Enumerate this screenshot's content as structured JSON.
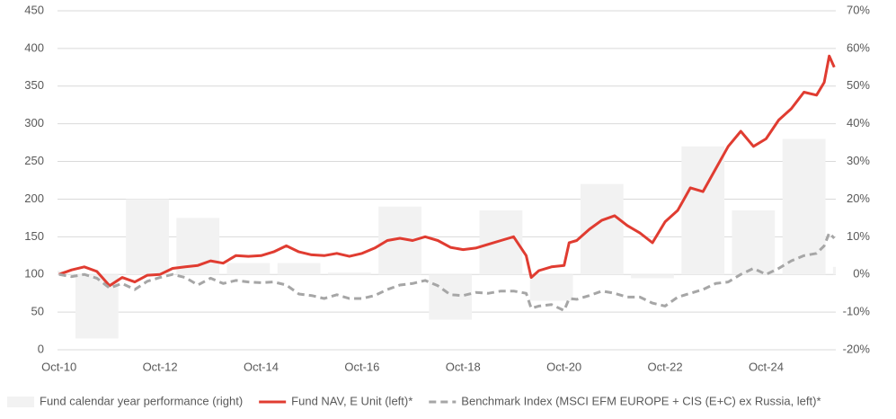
{
  "chart_data": {
    "type": "combo",
    "x": [
      2010.75,
      2011.0,
      2011.25,
      2011.5,
      2011.75,
      2012.0,
      2012.25,
      2012.5,
      2012.75,
      2013.0,
      2013.25,
      2013.5,
      2013.75,
      2014.0,
      2014.25,
      2014.5,
      2014.75,
      2015.0,
      2015.25,
      2015.5,
      2015.75,
      2016.0,
      2016.25,
      2016.5,
      2016.75,
      2017.0,
      2017.25,
      2017.5,
      2017.75,
      2018.0,
      2018.25,
      2018.5,
      2018.75,
      2019.0,
      2019.25,
      2019.5,
      2019.75,
      2020.0,
      2020.1,
      2020.25,
      2020.5,
      2020.75,
      2020.85,
      2021.0,
      2021.25,
      2021.5,
      2021.75,
      2022.0,
      2022.25,
      2022.5,
      2022.75,
      2023.0,
      2023.25,
      2023.5,
      2023.75,
      2024.0,
      2024.25,
      2024.5,
      2024.75,
      2025.0,
      2025.25,
      2025.5,
      2025.75,
      2025.9,
      2026.0,
      2026.1
    ],
    "xlim": [
      2010.72,
      2026.13
    ],
    "xticks": [
      {
        "value": 2010.75,
        "label": "Oct-10"
      },
      {
        "value": 2012.75,
        "label": "Oct-12"
      },
      {
        "value": 2014.75,
        "label": "Oct-14"
      },
      {
        "value": 2016.75,
        "label": "Oct-16"
      },
      {
        "value": 2018.75,
        "label": "Oct-18"
      },
      {
        "value": 2020.75,
        "label": "Oct-20"
      },
      {
        "value": 2022.75,
        "label": "Oct-22"
      },
      {
        "value": 2024.75,
        "label": "Oct-24"
      }
    ],
    "ylim": [
      0,
      450
    ],
    "yticks": [
      0,
      50,
      100,
      150,
      200,
      250,
      300,
      350,
      400,
      450
    ],
    "y2lim": [
      -20,
      70
    ],
    "y2ticks": [
      {
        "value": -20,
        "label": "-20%"
      },
      {
        "value": -10,
        "label": "-10%"
      },
      {
        "value": 0,
        "label": "0%"
      },
      {
        "value": 10,
        "label": "10%"
      },
      {
        "value": 20,
        "label": "20%"
      },
      {
        "value": 30,
        "label": "30%"
      },
      {
        "value": 40,
        "label": "40%"
      },
      {
        "value": 50,
        "label": "50%"
      },
      {
        "value": 60,
        "label": "60%"
      },
      {
        "value": 70,
        "label": "70%"
      }
    ],
    "grid": true,
    "legend": "bottom",
    "series": [
      {
        "name": "Fund calendar year performance (right)",
        "type": "bar",
        "axis": "y2",
        "color": "#f2f2f2",
        "x": [
          2010.5,
          2011.5,
          2012.5,
          2013.5,
          2014.5,
          2015.5,
          2016.5,
          2017.5,
          2018.5,
          2019.5,
          2020.5,
          2021.5,
          2022.5,
          2023.5,
          2024.5,
          2025.5,
          2026.5
        ],
        "values": [
          1,
          -17,
          20,
          15,
          3,
          3,
          0.5,
          18,
          -12,
          17,
          -7,
          24,
          -1,
          34,
          17,
          36,
          2
        ]
      },
      {
        "name": "Fund NAV, E Unit (left)*",
        "type": "line",
        "color": "#e03c31",
        "values": [
          100,
          106,
          110,
          104,
          85,
          96,
          90,
          99,
          100,
          108,
          110,
          112,
          118,
          115,
          125,
          124,
          125,
          130,
          138,
          130,
          126,
          125,
          128,
          124,
          128,
          135,
          145,
          148,
          145,
          150,
          145,
          136,
          133,
          135,
          140,
          145,
          150,
          125,
          96,
          105,
          110,
          112,
          142,
          145,
          160,
          172,
          178,
          165,
          155,
          142,
          170,
          185,
          215,
          210,
          240,
          270,
          290,
          270,
          280,
          305,
          320,
          342,
          338,
          355,
          390,
          375
        ]
      },
      {
        "name": "Benchmark Index (MSCI EFM EUROPE + CIS (E+C) ex Russia, left)*",
        "type": "line",
        "dash": true,
        "color": "#a6a6a6",
        "values": [
          100,
          97,
          100,
          95,
          82,
          88,
          80,
          91,
          96,
          100,
          96,
          86,
          95,
          88,
          92,
          90,
          89,
          90,
          86,
          74,
          72,
          68,
          73,
          68,
          68,
          72,
          80,
          86,
          88,
          92,
          85,
          73,
          72,
          76,
          75,
          78,
          78,
          75,
          55,
          58,
          60,
          52,
          68,
          67,
          72,
          78,
          75,
          70,
          70,
          62,
          58,
          70,
          75,
          80,
          88,
          90,
          100,
          108,
          100,
          108,
          118,
          125,
          128,
          138,
          155,
          148
        ]
      }
    ]
  }
}
